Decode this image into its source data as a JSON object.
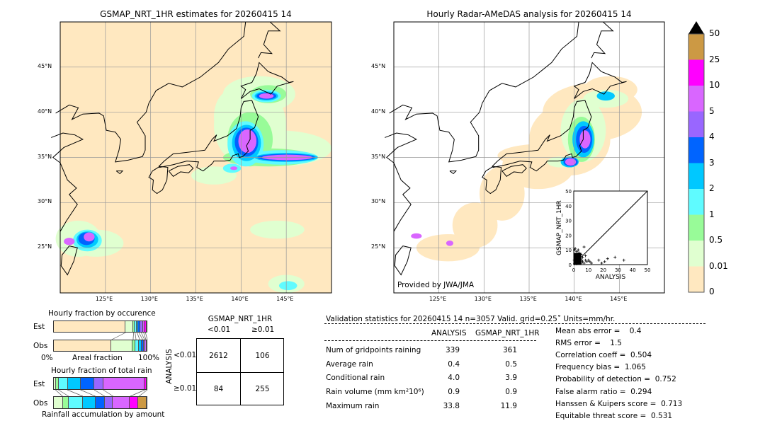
{
  "colors": {
    "tan": "#ffe8c0",
    "lightgreen": "#e0ffd0",
    "green": "#98fb98",
    "cyan": "#5ffbff",
    "deepsky": "#00c8ff",
    "blue": "#0064ff",
    "purple": "#9966ff",
    "violet": "#d966ff",
    "magenta": "#ff00ff",
    "brown": "#cc9944",
    "coast": "#000000",
    "grid": "#999999"
  },
  "chart_data": [
    {
      "type": "map",
      "title": "GSMAP_NRT_1HR estimates for 20260415 14",
      "xticks": [
        "125°E",
        "130°E",
        "135°E",
        "140°E",
        "145°E"
      ],
      "yticks": [
        "45°N",
        "40°N",
        "35°N",
        "30°N",
        "25°N"
      ],
      "lon_range": [
        120,
        150
      ],
      "lat_range": [
        20,
        50
      ],
      "grid": true
    },
    {
      "type": "map",
      "title": "Hourly Radar-AMeDAS analysis for 20260415 14",
      "xticks": [
        "125°E",
        "130°E",
        "135°E",
        "140°E",
        "145°E"
      ],
      "yticks": [
        "45°N",
        "40°N",
        "35°N",
        "30°N",
        "25°N"
      ],
      "lon_range": [
        120,
        150
      ],
      "lat_range": [
        20,
        50
      ],
      "grid": true,
      "annotation": "Provided by JWA/JMA"
    },
    {
      "type": "colorbar",
      "levels": [
        "0",
        "0.01",
        "0.5",
        "1",
        "2",
        "3",
        "4",
        "5",
        "10",
        "25",
        "50"
      ],
      "colors": [
        "#ffe8c0",
        "#e0ffd0",
        "#98fb98",
        "#5ffbff",
        "#00c8ff",
        "#0064ff",
        "#9966ff",
        "#d966ff",
        "#ff00ff",
        "#cc9944"
      ],
      "extend": "max"
    },
    {
      "type": "scatter",
      "xlabel": "ANALYSIS",
      "ylabel": "GSMAP_NRT_1HR",
      "xlim": [
        0,
        50
      ],
      "ylim": [
        0,
        50
      ],
      "ticks": [
        "0",
        "10",
        "20",
        "30",
        "40",
        "50"
      ],
      "diagonal": true,
      "points": [
        [
          0.5,
          0.5
        ],
        [
          1,
          2
        ],
        [
          1,
          4
        ],
        [
          1.5,
          7
        ],
        [
          2,
          9
        ],
        [
          2,
          1
        ],
        [
          2.5,
          5
        ],
        [
          3,
          3
        ],
        [
          3,
          6
        ],
        [
          3.5,
          8
        ],
        [
          4,
          2
        ],
        [
          4,
          5
        ],
        [
          4.5,
          4
        ],
        [
          5,
          1
        ],
        [
          5,
          7
        ],
        [
          5.5,
          3
        ],
        [
          6,
          2
        ],
        [
          6,
          5
        ],
        [
          7,
          12
        ],
        [
          7,
          1
        ],
        [
          8,
          3
        ],
        [
          8,
          6
        ],
        [
          9,
          2
        ],
        [
          10,
          3
        ],
        [
          11,
          2
        ],
        [
          12,
          1
        ],
        [
          17,
          3
        ],
        [
          19,
          1
        ],
        [
          21,
          2
        ],
        [
          23,
          4
        ],
        [
          28,
          5
        ],
        [
          34,
          3
        ],
        [
          0.5,
          10
        ],
        [
          1,
          11
        ],
        [
          3,
          10
        ],
        [
          2,
          0.5
        ],
        [
          0.3,
          3
        ],
        [
          0.8,
          6
        ]
      ]
    },
    {
      "type": "stacked-bar",
      "title": "Hourly fraction by occurence",
      "xlabel": "Areal fraction",
      "xtick_left": "0%",
      "xtick_right": "100%",
      "rows": [
        {
          "name": "Est",
          "bounds": [
            0.77,
            0.854,
            0.87,
            0.89,
            0.91,
            0.935,
            0.96,
            0.98,
            1.0
          ]
        },
        {
          "name": "Obs",
          "bounds": [
            0.622,
            0.849,
            0.88,
            0.92,
            0.95,
            0.97,
            0.985,
            1.0
          ]
        }
      ]
    },
    {
      "type": "stacked-bar",
      "title": "Hourly fraction of total rain",
      "xlabel": "Rainfall accumulation by amount",
      "rows": [
        {
          "name": "Est",
          "bounds": [
            0.025,
            0.055,
            0.15,
            0.29,
            0.436,
            0.531,
            0.975,
            1.0
          ],
          "start": 1
        },
        {
          "name": "Obs",
          "bounds": [
            0.1,
            0.164,
            0.315,
            0.448,
            0.547,
            0.637,
            0.819,
            0.912,
            1.0
          ],
          "start": 1
        }
      ]
    }
  ],
  "contingency": {
    "col_title": "GSMAP_NRT_1HR",
    "col_labels": [
      "<0.01",
      "≥0.01"
    ],
    "row_title": "ANALYSIS",
    "row_labels": [
      "<0.01",
      "≥0.01"
    ],
    "cells": [
      [
        "2612",
        "106"
      ],
      [
        "84",
        "255"
      ]
    ]
  },
  "stats": {
    "title": "Validation statistics for 20260415 14  n=3057 Valid. grid=0.25˚ Units=mm/hr.",
    "col_a": "ANALYSIS",
    "col_b": "GSMAP_NRT_1HR",
    "rows": [
      {
        "label": "Num of gridpoints raining",
        "a": "339",
        "b": "361"
      },
      {
        "label": "Average rain",
        "a": "0.4",
        "b": "0.5"
      },
      {
        "label": "Conditional rain",
        "a": "4.0",
        "b": "3.9"
      },
      {
        "label": "Rain volume (mm km²10⁶)",
        "a": "0.9",
        "b": "0.9"
      },
      {
        "label": "Maximum rain",
        "a": "33.8",
        "b": "11.9"
      }
    ],
    "scores": [
      "Mean abs error =    0.4",
      "RMS error =    1.5",
      "Correlation coeff =  0.504",
      "Frequency bias =  1.065",
      "Probability of detection =  0.752",
      "False alarm ratio =  0.294",
      "Hanssen & Kuipers score =  0.713",
      "Equitable threat score =  0.531"
    ]
  }
}
